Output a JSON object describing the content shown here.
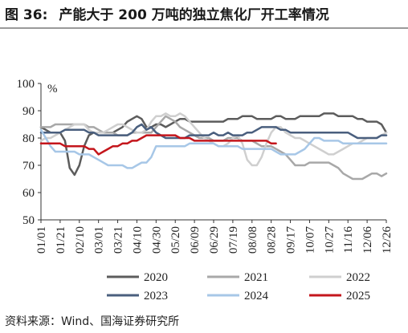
{
  "figure": {
    "label": "图 36:",
    "title": "产能大于 200 万吨的独立焦化厂开工率情况"
  },
  "source": "资料来源：Wind、国海证券研究所",
  "chart_data": {
    "type": "line",
    "title": "",
    "xlabel": "",
    "ylabel": "",
    "y_unit": "%",
    "ylim": [
      50,
      100
    ],
    "y_ticks": [
      50,
      60,
      70,
      80,
      90,
      100
    ],
    "x_ticks": [
      "01/01",
      "01/21",
      "02/10",
      "03/01",
      "03/21",
      "04/10",
      "04/30",
      "05/20",
      "06/09",
      "06/29",
      "07/19",
      "08/08",
      "08/28",
      "09/17",
      "10/07",
      "10/27",
      "11/16",
      "12/06",
      "12/26"
    ],
    "x_tick_index": [
      0,
      4,
      8,
      12,
      16,
      20,
      24,
      28,
      32,
      36,
      40,
      44,
      48,
      52,
      56,
      60,
      64,
      68,
      72
    ],
    "x_count": 73,
    "grid": false,
    "legend_position": "bottom",
    "series": [
      {
        "name": "2020",
        "color": "#5c5c5c",
        "values": [
          84,
          83,
          82,
          82,
          82,
          79,
          69,
          66.5,
          70,
          77,
          81,
          82,
          82,
          82,
          82,
          82,
          83,
          84,
          86,
          87,
          88,
          87,
          84,
          84,
          85,
          85,
          84,
          85,
          86,
          87,
          87,
          86,
          86,
          86,
          86,
          86,
          86,
          86,
          86,
          87,
          87,
          87,
          88,
          88,
          88,
          87,
          87,
          87,
          87,
          88,
          88,
          87,
          87,
          87,
          88,
          88,
          88,
          88,
          88,
          89,
          89,
          89,
          88,
          88,
          88,
          88,
          87,
          87,
          86,
          86,
          86,
          85,
          82
        ]
      },
      {
        "name": "2021",
        "color": "#a8a8a8",
        "values": [
          84,
          84,
          84,
          85,
          85,
          85,
          85,
          85,
          85,
          85,
          84,
          84,
          83,
          82,
          82,
          82,
          81,
          81,
          81,
          82,
          82,
          82,
          82,
          82,
          84,
          86,
          88,
          87,
          86,
          84,
          83,
          82,
          81,
          80,
          80,
          80,
          79,
          79,
          79,
          80,
          80,
          80,
          79,
          79,
          79,
          78,
          77,
          77,
          77,
          76,
          75,
          74,
          72,
          70,
          70,
          70,
          71,
          71,
          71,
          71,
          71,
          70,
          69,
          67,
          66,
          65,
          65,
          65,
          66,
          67,
          67,
          66,
          67
        ]
      },
      {
        "name": "2022",
        "color": "#cfcfcf",
        "values": [
          79,
          80,
          80,
          81,
          82,
          83,
          84,
          85,
          85,
          85,
          83,
          82,
          82,
          82,
          83,
          84,
          85,
          85,
          84,
          83,
          82,
          82,
          83,
          86,
          88,
          88,
          89,
          88,
          88,
          89,
          88,
          86,
          84,
          82,
          80,
          79,
          78,
          77,
          77,
          78,
          80,
          81,
          78,
          72,
          70,
          70,
          73,
          78,
          82,
          84,
          84,
          82,
          81,
          80,
          80,
          79,
          78,
          77,
          76,
          75,
          74,
          74,
          75,
          76,
          77,
          78,
          78,
          79,
          80,
          80,
          80,
          81,
          82
        ]
      },
      {
        "name": "2023",
        "color": "#4a5f7e",
        "values": [
          82,
          82,
          82,
          82,
          82,
          83,
          83,
          83,
          83,
          83,
          82,
          82,
          81,
          81,
          81,
          81,
          81,
          81,
          81,
          82,
          84,
          85,
          83,
          84,
          82,
          81,
          80,
          80,
          80,
          80,
          80,
          81,
          81,
          81,
          81,
          81,
          82,
          81,
          81,
          82,
          81,
          81,
          81,
          82,
          82,
          83,
          84,
          84,
          84,
          84,
          83,
          83,
          82,
          82,
          82,
          82,
          82,
          82,
          82,
          82,
          82,
          82,
          82,
          82,
          82,
          81,
          80,
          80,
          80,
          80,
          80,
          81,
          81
        ]
      },
      {
        "name": "2024",
        "color": "#a7c7e7",
        "values": [
          83,
          80,
          77,
          75,
          75,
          75,
          75,
          75,
          74,
          74,
          74,
          73,
          72,
          71,
          70,
          70,
          70,
          70,
          69,
          69,
          70,
          71,
          71,
          73,
          77,
          77,
          77,
          77,
          77,
          77,
          77,
          78,
          78,
          78,
          78,
          78,
          78,
          77,
          77,
          77,
          77,
          77,
          76,
          76,
          76,
          76,
          76,
          76,
          76,
          75,
          74,
          74,
          74,
          74,
          75,
          76,
          78,
          80,
          80,
          79,
          79,
          79,
          79,
          78,
          78,
          78,
          78,
          78,
          78,
          78,
          78,
          78,
          78
        ]
      },
      {
        "name": "2025",
        "color": "#c4161c",
        "values": [
          78,
          78,
          78,
          78,
          78,
          77,
          77,
          77,
          77,
          77,
          76,
          76,
          74,
          75,
          76,
          77,
          77,
          78,
          78,
          79,
          79,
          80,
          81,
          81,
          81,
          81,
          81,
          81,
          81,
          80,
          80,
          80,
          79,
          79,
          79,
          79,
          79,
          79,
          79,
          79,
          79,
          79,
          79,
          79,
          79,
          79,
          79,
          79,
          78,
          78,
          null,
          null,
          null,
          null,
          null,
          null,
          null,
          null,
          null,
          null,
          null,
          null,
          null,
          null,
          null,
          null,
          null,
          null,
          null,
          null,
          null,
          null,
          null
        ]
      }
    ]
  }
}
